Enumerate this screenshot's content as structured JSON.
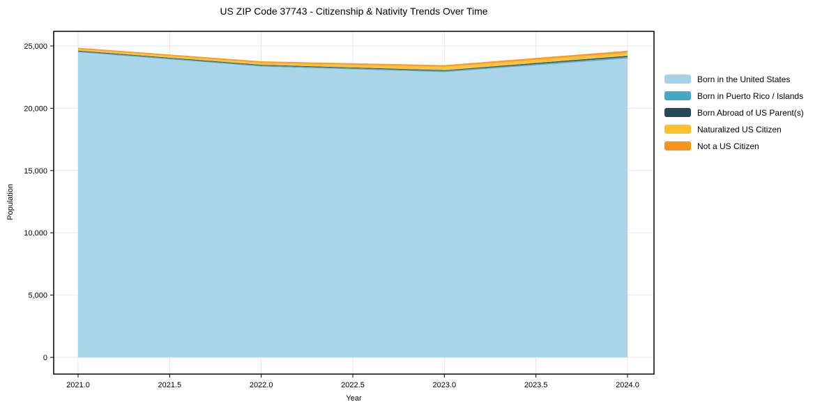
{
  "chart_data": {
    "type": "area",
    "stacked": true,
    "title": "US ZIP Code 37743 - Citizenship & Nativity Trends Over Time",
    "xlabel": "Year",
    "ylabel": "Population",
    "grid": true,
    "legend_position": "right-outside",
    "x": [
      2021,
      2022,
      2023,
      2024
    ],
    "series": [
      {
        "name": "Born in the United States",
        "color": "#a4d2e7",
        "values": [
          24500,
          23350,
          22900,
          24000
        ]
      },
      {
        "name": "Born in Puerto Rico / Islands",
        "color": "#46a8c2",
        "values": [
          70,
          80,
          90,
          110
        ]
      },
      {
        "name": "Born Abroad of US Parent(s)",
        "color": "#28495c",
        "values": [
          60,
          60,
          70,
          100
        ]
      },
      {
        "name": "Naturalized US Citizen",
        "color": "#fdc02c",
        "values": [
          120,
          160,
          260,
          240
        ]
      },
      {
        "name": "Not a US Citizen",
        "color": "#f7941e",
        "values": [
          110,
          120,
          140,
          170
        ]
      }
    ],
    "totals": [
      24860,
      23770,
      23460,
      24620
    ],
    "xticks": {
      "values": [
        2021.0,
        2021.5,
        2022.0,
        2022.5,
        2023.0,
        2023.5,
        2024.0
      ],
      "labels": [
        "2021.0",
        "2021.5",
        "2022.0",
        "2022.5",
        "2023.0",
        "2023.5",
        "2024.0"
      ]
    },
    "yticks": {
      "values": [
        0,
        5000,
        10000,
        15000,
        20000,
        25000
      ],
      "labels": [
        "0",
        "5,000",
        "10,000",
        "15,000",
        "20,000",
        "25,000"
      ]
    },
    "xlim": [
      2020.87,
      2024.14
    ],
    "ylim": [
      -1340,
      26150
    ],
    "colors": {
      "gridline": "#e7e7e7",
      "spine": "#000000",
      "text": "#000000",
      "background": "#ffffff"
    }
  }
}
